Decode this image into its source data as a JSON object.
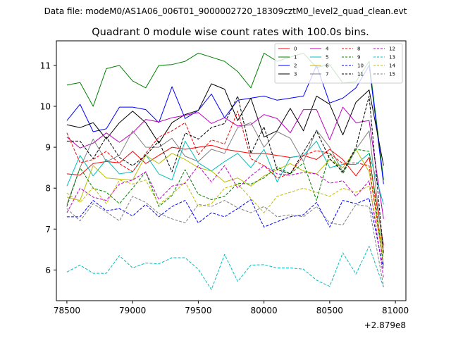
{
  "header": {
    "data_file": "Data file: modeM0/AS1A06_006T01_9000002720_18309cztM0_level2_quad_clean.evt"
  },
  "chart_data": {
    "type": "line",
    "title": "Quadrant 0 module wise count rates with 100.0s bins.",
    "xlabel": "",
    "ylabel": "",
    "x_offset_label": "+2.879e8",
    "xlim": [
      78420,
      81080
    ],
    "ylim": [
      5.25,
      11.6
    ],
    "xticks": [
      78500,
      79000,
      79500,
      80000,
      80500,
      81000
    ],
    "xtick_labels": [
      "78500",
      "79000",
      "79500",
      "80000",
      "80500",
      "81000"
    ],
    "yticks": [
      6,
      7,
      8,
      9,
      10,
      11
    ],
    "ytick_labels": [
      "6",
      "7",
      "8",
      "9",
      "10",
      "11"
    ],
    "grid": false,
    "legend_position": "top-right",
    "x": [
      78500,
      78600,
      78700,
      78800,
      78900,
      79000,
      79100,
      79200,
      79300,
      79400,
      79500,
      79600,
      79700,
      79800,
      79900,
      80000,
      80100,
      80200,
      80300,
      80400,
      80500,
      80600,
      80700,
      80800,
      80910
    ],
    "series": [
      {
        "name": "0",
        "color": "#ff0000",
        "dash": "solid",
        "values": [
          8.35,
          8.32,
          8.6,
          8.65,
          8.62,
          8.9,
          8.6,
          8.8,
          9.0,
          8.95,
          9.0,
          9.05,
          8.95,
          8.9,
          8.85,
          8.85,
          8.8,
          8.75,
          8.8,
          8.7,
          8.95,
          8.7,
          8.3,
          8.75,
          6.6
        ]
      },
      {
        "name": "1",
        "color": "#008000",
        "dash": "solid",
        "values": [
          10.52,
          10.58,
          10.0,
          10.92,
          11.0,
          10.62,
          10.45,
          11.0,
          11.02,
          11.1,
          11.3,
          11.2,
          11.1,
          10.85,
          10.45,
          11.3,
          11.1,
          11.2,
          11.3,
          10.95,
          11.02,
          10.57,
          10.6,
          11.1,
          8.2
        ]
      },
      {
        "name": "2",
        "color": "#0000ff",
        "dash": "solid",
        "values": [
          9.65,
          10.05,
          9.38,
          9.45,
          9.98,
          9.98,
          9.92,
          9.6,
          10.48,
          9.7,
          9.9,
          10.3,
          9.72,
          10.15,
          10.2,
          10.25,
          10.15,
          10.2,
          10.25,
          11.0,
          10.08,
          10.2,
          10.45,
          11.0,
          8.1
        ]
      },
      {
        "name": "3",
        "color": "#000000",
        "dash": "solid",
        "values": [
          9.55,
          9.48,
          9.6,
          9.2,
          9.6,
          9.88,
          9.6,
          9.1,
          9.6,
          9.8,
          9.9,
          10.55,
          10.42,
          9.65,
          10.2,
          9.25,
          9.4,
          9.95,
          9.4,
          10.25,
          10.05,
          9.3,
          10.1,
          10.4,
          8.55
        ]
      },
      {
        "name": "4",
        "color": "#bf00bf",
        "dash": "solid",
        "values": [
          9.25,
          8.98,
          9.1,
          9.35,
          9.12,
          9.35,
          9.68,
          9.62,
          9.72,
          9.78,
          9.85,
          9.58,
          9.72,
          9.52,
          9.55,
          9.8,
          9.7,
          9.35,
          9.92,
          9.92,
          9.18,
          9.98,
          9.6,
          9.65,
          7.25
        ]
      },
      {
        "name": "5",
        "color": "#00bfbf",
        "dash": "solid",
        "values": [
          8.05,
          8.8,
          8.3,
          8.7,
          8.35,
          8.4,
          8.82,
          8.35,
          8.2,
          9.15,
          8.62,
          8.42,
          8.65,
          8.85,
          8.5,
          8.95,
          8.15,
          8.75,
          8.8,
          9.15,
          8.5,
          8.58,
          8.58,
          8.85,
          7.6
        ]
      },
      {
        "name": "6",
        "color": "#bfbf00",
        "dash": "solid",
        "values": [
          7.78,
          7.7,
          8.55,
          8.25,
          8.22,
          8.2,
          8.8,
          8.6,
          8.85,
          8.7,
          8.5,
          8.42,
          8.15,
          8.25,
          8.05,
          8.3,
          8.45,
          8.6,
          8.42,
          8.35,
          8.7,
          8.5,
          8.95,
          8.4,
          6.4
        ]
      },
      {
        "name": "7",
        "color": "#808080",
        "dash": "solid",
        "values": [
          7.6,
          8.5,
          9.2,
          8.65,
          8.8,
          9.4,
          9.0,
          9.0,
          9.22,
          8.78,
          8.65,
          8.95,
          8.85,
          9.48,
          9.6,
          9.0,
          9.38,
          9.22,
          8.65,
          9.42,
          9.0,
          8.4,
          8.95,
          9.4,
          6.4
        ]
      },
      {
        "name": "8",
        "color": "#ff0000",
        "dash": "dashed",
        "values": [
          9.35,
          8.62,
          8.7,
          8.9,
          8.6,
          8.4,
          8.85,
          9.25,
          9.4,
          9.6,
          8.82,
          9.18,
          9.08,
          9.88,
          8.72,
          8.55,
          8.25,
          8.35,
          8.8,
          8.92,
          8.85,
          8.6,
          8.62,
          8.55,
          6.1
        ]
      },
      {
        "name": "9",
        "color": "#008000",
        "dash": "dashed",
        "values": [
          7.55,
          8.5,
          8.0,
          7.9,
          7.62,
          8.0,
          8.4,
          7.55,
          7.82,
          8.45,
          7.85,
          7.72,
          7.8,
          8.12,
          8.1,
          8.25,
          8.52,
          8.35,
          8.62,
          7.7,
          8.85,
          8.35,
          8.95,
          8.9,
          6.1
        ]
      },
      {
        "name": "10",
        "color": "#0000ff",
        "dash": "dashed",
        "values": [
          7.3,
          7.3,
          7.7,
          7.45,
          7.5,
          7.32,
          7.6,
          7.3,
          7.55,
          7.7,
          7.15,
          7.4,
          7.3,
          7.5,
          7.72,
          7.05,
          7.18,
          7.3,
          7.35,
          7.65,
          7.05,
          7.7,
          7.62,
          7.75,
          6.0
        ]
      },
      {
        "name": "11",
        "color": "#000000",
        "dash": "dashed",
        "values": [
          9.15,
          9.15,
          8.72,
          9.25,
          8.75,
          8.55,
          8.8,
          9.15,
          8.4,
          9.35,
          9.2,
          9.48,
          9.58,
          10.25,
          8.85,
          9.5,
          8.45,
          8.35,
          8.88,
          9.4,
          8.72,
          8.4,
          9.0,
          10.25,
          6.4
        ]
      },
      {
        "name": "12",
        "color": "#bf00bf",
        "dash": "dashed",
        "values": [
          7.4,
          8.0,
          7.78,
          7.7,
          8.1,
          8.2,
          8.4,
          7.72,
          8.05,
          8.12,
          8.55,
          8.15,
          8.55,
          8.0,
          8.3,
          8.55,
          8.35,
          8.32,
          8.38,
          8.35,
          8.12,
          8.18,
          7.8,
          8.18,
          5.8
        ]
      },
      {
        "name": "13",
        "color": "#00bfbf",
        "dash": "dashed",
        "values": [
          5.95,
          6.12,
          5.92,
          5.92,
          6.35,
          6.05,
          6.17,
          6.15,
          6.3,
          6.3,
          6.02,
          5.52,
          6.38,
          5.72,
          6.12,
          6.13,
          6.05,
          6.05,
          6.02,
          5.75,
          5.6,
          6.42,
          5.9,
          6.58,
          5.58
        ]
      },
      {
        "name": "14",
        "color": "#bfbf00",
        "dash": "dashed",
        "values": [
          7.88,
          7.65,
          8.02,
          7.62,
          8.2,
          8.1,
          8.2,
          7.6,
          7.85,
          8.15,
          7.55,
          7.62,
          8.0,
          8.1,
          7.75,
          7.4,
          7.8,
          7.9,
          8.0,
          7.9,
          7.8,
          8.0,
          7.9,
          8.05,
          6.3
        ]
      },
      {
        "name": "15",
        "color": "#808080",
        "dash": "dashed",
        "values": [
          7.5,
          7.2,
          7.62,
          7.42,
          7.2,
          7.8,
          7.65,
          7.38,
          7.25,
          7.15,
          7.6,
          7.55,
          7.7,
          7.52,
          7.4,
          7.55,
          7.3,
          7.35,
          7.3,
          7.55,
          7.15,
          7.1,
          7.6,
          7.55,
          5.6
        ]
      }
    ]
  }
}
